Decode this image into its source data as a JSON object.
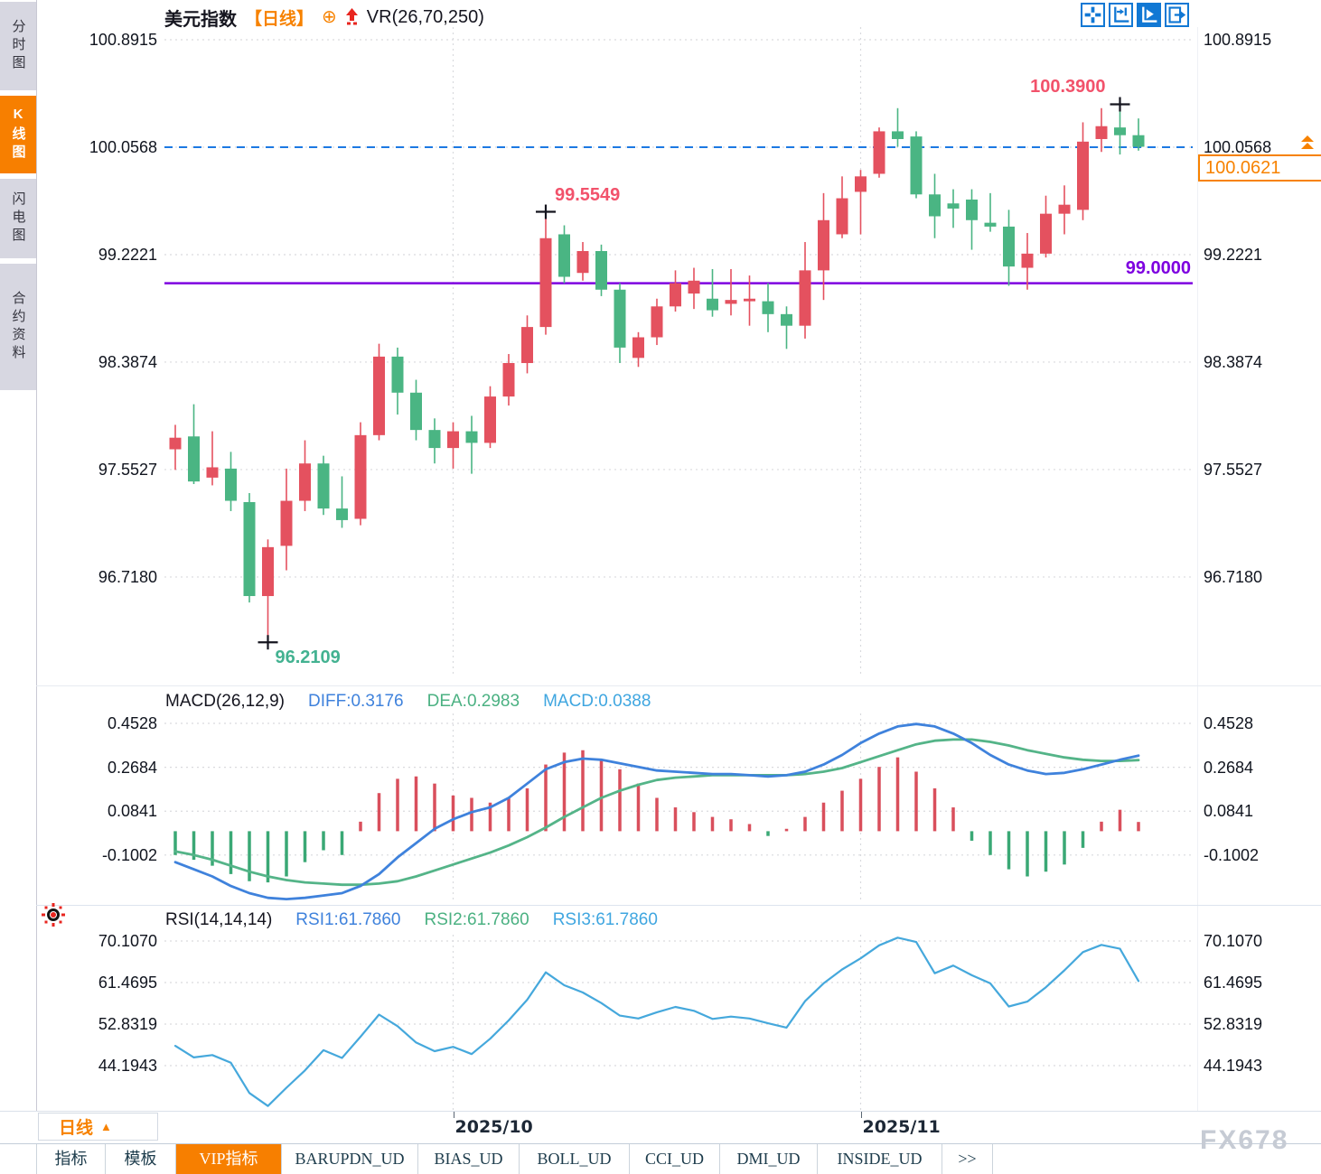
{
  "sidebar": {
    "tabs": [
      {
        "label": "分时图",
        "active": false
      },
      {
        "label": "K线图",
        "active": true
      },
      {
        "label": "闪电图",
        "active": false
      },
      {
        "label": "合约资料",
        "active": false
      }
    ]
  },
  "titlebar": {
    "symbol": "美元指数",
    "period_badge": "【日线】",
    "plus_icon": "⊕",
    "indicator": "VR(26,70,250)"
  },
  "toolbar": {
    "icons": [
      {
        "name": "move-crosshair-icon",
        "active": false
      },
      {
        "name": "axis-scale-icon",
        "active": false
      },
      {
        "name": "pointer-mode-icon",
        "active": true
      },
      {
        "name": "pan-latest-icon",
        "active": false
      }
    ]
  },
  "main_chart": {
    "current_price": "100.0621",
    "purple_line_label": "99.0000"
  },
  "macd_header": {
    "name": "MACD(26,12,9)",
    "diff": "DIFF:0.3176",
    "dea": "DEA:0.2983",
    "macd": "MACD:0.0388"
  },
  "rsi_header": {
    "name": "RSI(14,14,14)",
    "rsi1": "RSI1:61.7860",
    "rsi2": "RSI2:61.7860",
    "rsi3": "RSI3:61.7860"
  },
  "bottom": {
    "period_button": "日线",
    "period_arrow": "▲",
    "tabs": [
      {
        "label": "指标",
        "active": false
      },
      {
        "label": "模板",
        "active": false
      },
      {
        "label": "VIP指标",
        "active": true
      },
      {
        "label": "BARUPDN_UD",
        "active": false
      },
      {
        "label": "BIAS_UD",
        "active": false
      },
      {
        "label": "BOLL_UD",
        "active": false
      },
      {
        "label": "CCI_UD",
        "active": false
      },
      {
        "label": "DMI_UD",
        "active": false
      },
      {
        "label": "INSIDE_UD",
        "active": false
      },
      {
        "label": ">>",
        "active": false
      }
    ]
  },
  "watermark": "FX678",
  "colors": {
    "up": "#e4515f",
    "down": "#4ab583",
    "macd_up": "#d94f5c",
    "macd_down": "#3aa875",
    "diff_line": "#3f82dc",
    "dea_line": "#54b488",
    "rsi_line": "#45a8dc",
    "dashed_line": "#1c79e3",
    "purple_line": "#7e00e0",
    "accent": "#f77f00",
    "grid": "#d9dade",
    "cross": "#15151f"
  },
  "chart_data": {
    "type": "candlestick",
    "title": "美元指数 日线",
    "x_count": 53,
    "x_gridlines": [
      {
        "index": 15,
        "label": "2025/10"
      },
      {
        "index": 37,
        "label": "2025/11"
      }
    ],
    "price_panel": {
      "y_ticks": [
        100.8915,
        100.0568,
        99.2221,
        98.3874,
        97.5527,
        96.718
      ],
      "open": [
        97.71,
        97.81,
        97.49,
        97.56,
        97.3,
        96.57,
        96.96,
        97.31,
        97.6,
        97.25,
        97.17,
        97.82,
        98.43,
        98.15,
        97.86,
        97.72,
        97.85,
        97.76,
        98.12,
        98.38,
        98.66,
        99.38,
        99.08,
        99.25,
        98.95,
        98.42,
        98.58,
        98.82,
        98.92,
        98.88,
        98.84,
        98.86,
        98.86,
        98.76,
        98.67,
        99.1,
        99.38,
        99.71,
        99.85,
        100.18,
        100.14,
        99.69,
        99.62,
        99.65,
        99.47,
        99.44,
        99.12,
        99.23,
        99.54,
        99.57,
        100.12,
        100.21,
        100.15
      ],
      "high": [
        97.9,
        98.06,
        97.85,
        97.69,
        97.37,
        97.01,
        97.56,
        97.78,
        97.66,
        97.5,
        97.92,
        98.53,
        98.5,
        98.25,
        97.95,
        97.92,
        97.97,
        98.2,
        98.45,
        98.75,
        99.55,
        99.45,
        99.32,
        99.3,
        99.0,
        98.62,
        98.88,
        99.1,
        99.12,
        99.11,
        99.11,
        99.06,
        99.0,
        98.82,
        99.32,
        99.7,
        99.83,
        99.88,
        100.21,
        100.36,
        100.18,
        99.85,
        99.73,
        99.73,
        99.7,
        99.57,
        99.39,
        99.68,
        99.76,
        100.25,
        100.36,
        100.39,
        100.28
      ],
      "low": [
        97.55,
        97.44,
        97.43,
        97.23,
        96.52,
        96.21,
        96.77,
        97.23,
        97.2,
        97.1,
        97.12,
        97.78,
        97.98,
        97.78,
        97.6,
        97.56,
        97.52,
        97.72,
        98.05,
        98.3,
        98.6,
        99.0,
        99.02,
        98.9,
        98.38,
        98.35,
        98.52,
        98.78,
        98.8,
        98.74,
        98.75,
        98.67,
        98.62,
        98.49,
        98.57,
        98.87,
        99.35,
        99.38,
        99.82,
        100.06,
        99.66,
        99.35,
        99.43,
        99.26,
        99.4,
        98.98,
        98.95,
        99.2,
        99.38,
        99.49,
        100.02,
        100.0,
        100.03
      ],
      "close": [
        97.8,
        97.46,
        97.57,
        97.31,
        96.57,
        96.95,
        97.31,
        97.6,
        97.25,
        97.16,
        97.82,
        98.43,
        98.15,
        97.86,
        97.72,
        97.85,
        97.76,
        98.12,
        98.38,
        98.66,
        99.35,
        99.05,
        99.25,
        98.95,
        98.5,
        98.58,
        98.82,
        99.0,
        99.02,
        98.79,
        98.87,
        98.88,
        98.76,
        98.67,
        99.1,
        99.49,
        99.66,
        99.83,
        100.18,
        100.12,
        99.69,
        99.52,
        99.58,
        99.49,
        99.44,
        99.13,
        99.23,
        99.54,
        99.61,
        100.1,
        100.22,
        100.15,
        100.06
      ],
      "reference_lines": [
        {
          "value": 100.0568,
          "style": "dashed"
        },
        {
          "value": 99.0,
          "style": "solid",
          "label": "99.0000"
        }
      ],
      "annotations": [
        {
          "index": 5,
          "price": 96.2109,
          "label": "96.2109",
          "color": "#43b291",
          "placement": "below-right"
        },
        {
          "index": 20,
          "price": 99.5549,
          "label": "99.5549",
          "color": "#f2526b",
          "placement": "above-right"
        },
        {
          "index": 51,
          "price": 100.39,
          "label": "100.3900",
          "color": "#f2526b",
          "placement": "above-left"
        }
      ],
      "last_close_tick": 100.0568
    },
    "macd_panel": {
      "y_ticks": [
        0.4528,
        0.2684,
        0.0841,
        -0.1002
      ],
      "diff": [
        -0.13,
        -0.16,
        -0.19,
        -0.23,
        -0.26,
        -0.28,
        -0.285,
        -0.28,
        -0.27,
        -0.26,
        -0.23,
        -0.18,
        -0.11,
        -0.05,
        0.01,
        0.05,
        0.08,
        0.1,
        0.14,
        0.2,
        0.26,
        0.29,
        0.305,
        0.3,
        0.285,
        0.27,
        0.255,
        0.25,
        0.245,
        0.24,
        0.24,
        0.235,
        0.23,
        0.235,
        0.25,
        0.28,
        0.32,
        0.37,
        0.41,
        0.44,
        0.45,
        0.44,
        0.41,
        0.37,
        0.32,
        0.28,
        0.255,
        0.24,
        0.245,
        0.26,
        0.28,
        0.3,
        0.3176
      ],
      "dea": [
        -0.085,
        -0.1,
        -0.12,
        -0.145,
        -0.17,
        -0.19,
        -0.205,
        -0.215,
        -0.22,
        -0.225,
        -0.225,
        -0.22,
        -0.21,
        -0.19,
        -0.165,
        -0.14,
        -0.115,
        -0.09,
        -0.06,
        -0.025,
        0.015,
        0.06,
        0.1,
        0.14,
        0.17,
        0.195,
        0.215,
        0.225,
        0.23,
        0.235,
        0.235,
        0.235,
        0.235,
        0.235,
        0.24,
        0.25,
        0.265,
        0.29,
        0.315,
        0.34,
        0.365,
        0.38,
        0.385,
        0.385,
        0.375,
        0.36,
        0.34,
        0.325,
        0.31,
        0.3,
        0.295,
        0.295,
        0.2983
      ],
      "hist": [
        -0.1,
        -0.12,
        -0.145,
        -0.18,
        -0.21,
        -0.215,
        -0.19,
        -0.13,
        -0.08,
        -0.1,
        0.04,
        0.16,
        0.22,
        0.23,
        0.2,
        0.15,
        0.14,
        0.12,
        0.14,
        0.18,
        0.28,
        0.33,
        0.34,
        0.3,
        0.26,
        0.2,
        0.14,
        0.1,
        0.08,
        0.06,
        0.05,
        0.03,
        -0.02,
        0.01,
        0.06,
        0.12,
        0.17,
        0.22,
        0.27,
        0.31,
        0.25,
        0.18,
        0.1,
        -0.04,
        -0.1,
        -0.16,
        -0.19,
        -0.17,
        -0.14,
        -0.07,
        0.04,
        0.09,
        0.0388
      ]
    },
    "rsi_panel": {
      "y_ticks": [
        70.107,
        61.4695,
        52.8319,
        44.1943
      ],
      "rsi": [
        48.3,
        45.9,
        46.4,
        44.8,
        38.5,
        35.8,
        39.6,
        43.2,
        47.4,
        45.8,
        50.2,
        54.8,
        52.4,
        49.0,
        47.2,
        48.1,
        46.6,
        49.8,
        53.6,
        57.9,
        63.6,
        60.9,
        59.4,
        57.2,
        54.6,
        54.0,
        55.3,
        56.4,
        55.6,
        53.9,
        54.4,
        54.0,
        53.0,
        52.1,
        57.6,
        61.3,
        64.2,
        66.5,
        69.2,
        70.8,
        69.9,
        63.4,
        65.0,
        63.0,
        61.3,
        56.5,
        57.5,
        60.5,
        64.0,
        67.8,
        69.3,
        68.5,
        61.786
      ]
    }
  }
}
